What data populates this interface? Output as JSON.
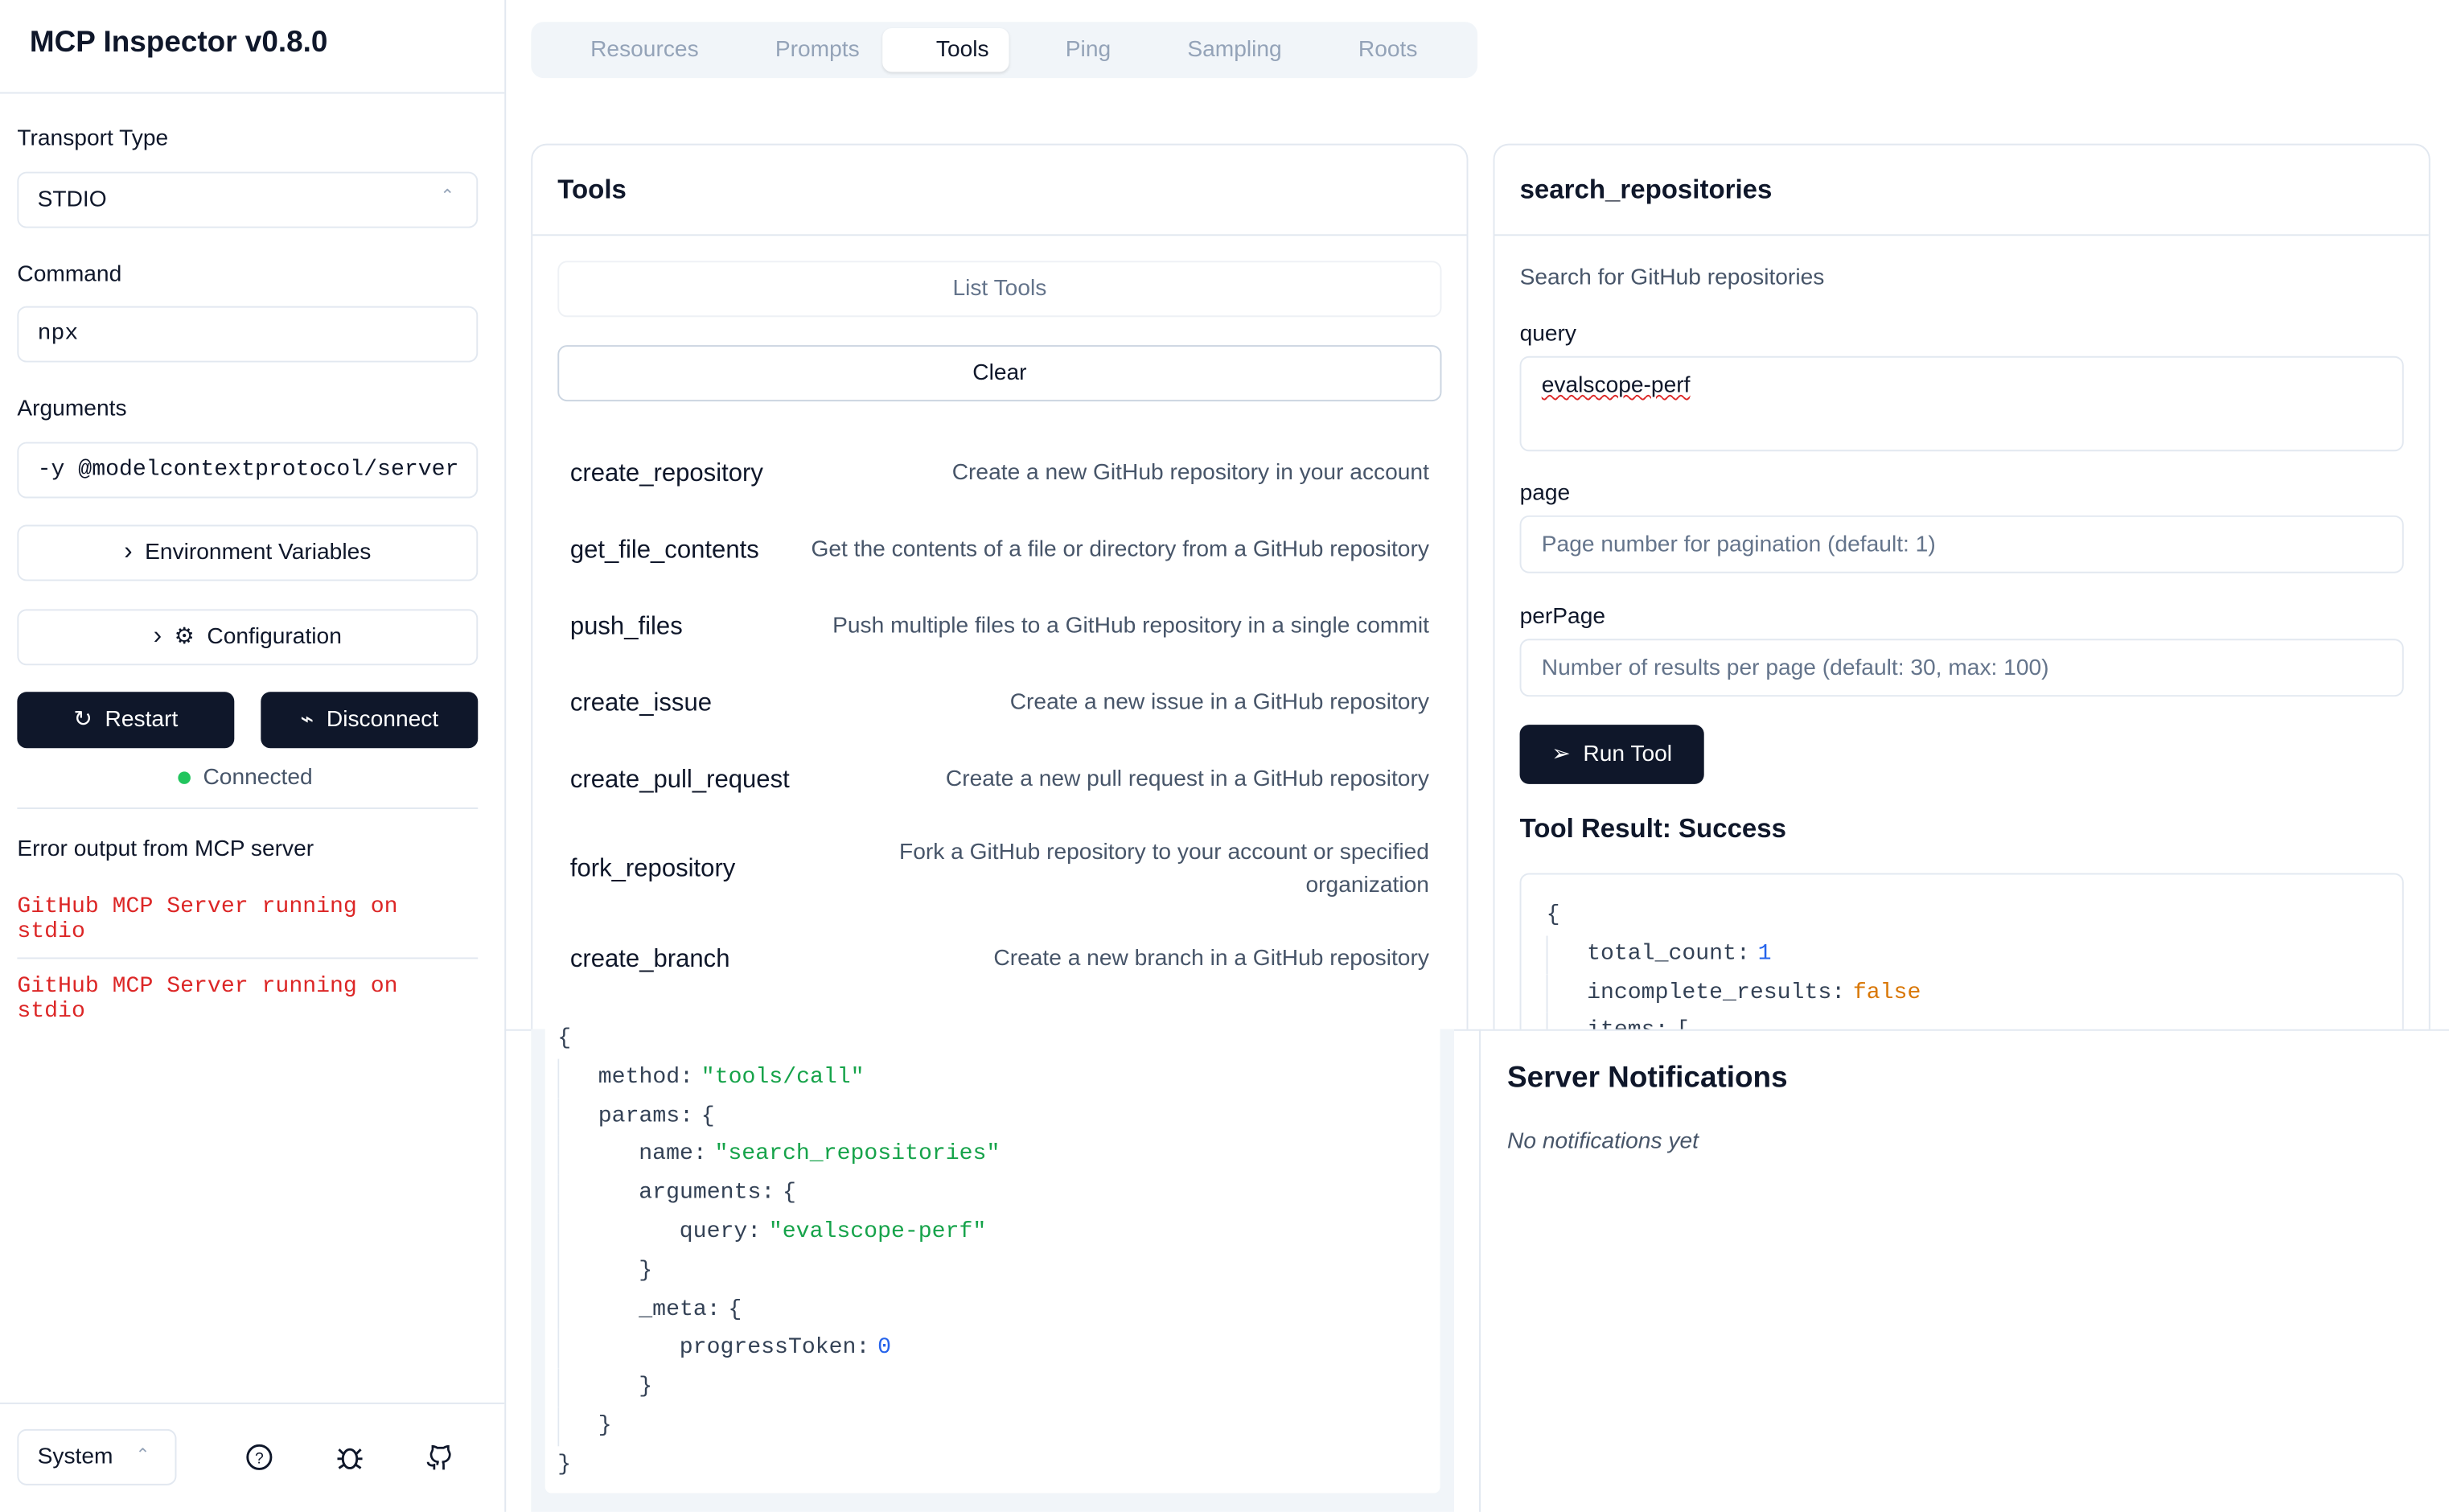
{
  "header": {
    "title": "MCP Inspector v0.8.0"
  },
  "sidebar": {
    "transport_label": "Transport Type",
    "transport_value": "STDIO",
    "command_label": "Command",
    "command_value": "npx",
    "arguments_label": "Arguments",
    "arguments_value": "-y @modelcontextprotocol/server",
    "env_button": "Environment Variables",
    "config_button": "Configuration",
    "restart_button": "Restart",
    "disconnect_button": "Disconnect",
    "status": "Connected",
    "error_title": "Error output from MCP server",
    "errors": [
      "GitHub MCP Server running on stdio",
      "GitHub MCP Server running on stdio"
    ],
    "theme": "System"
  },
  "tabs": [
    "Resources",
    "Prompts",
    "Tools",
    "Ping",
    "Sampling",
    "Roots"
  ],
  "tools_panel": {
    "title": "Tools",
    "list_button": "List Tools",
    "clear_button": "Clear",
    "tools": [
      {
        "name": "create_repository",
        "description": "Create a new GitHub repository in your account"
      },
      {
        "name": "get_file_contents",
        "description": "Get the contents of a file or directory from a GitHub repository"
      },
      {
        "name": "push_files",
        "description": "Push multiple files to a GitHub repository in a single commit"
      },
      {
        "name": "create_issue",
        "description": "Create a new issue in a GitHub repository"
      },
      {
        "name": "create_pull_request",
        "description": "Create a new pull request in a GitHub repository"
      },
      {
        "name": "fork_repository",
        "description": "Fork a GitHub repository to your account or specified organization"
      },
      {
        "name": "create_branch",
        "description": "Create a new branch in a GitHub repository"
      }
    ]
  },
  "tool_detail": {
    "title": "search_repositories",
    "description": "Search for GitHub repositories",
    "fields": [
      {
        "label": "query",
        "value": "evalscope-perf"
      },
      {
        "label": "page",
        "placeholder": "Page number for pagination (default: 1)"
      },
      {
        "label": "perPage",
        "placeholder": "Number of results per page (default: 30, max: 100)"
      }
    ],
    "run_button": "Run Tool",
    "result_title": "Tool Result: Success",
    "result_lines": [
      {
        "text": "{"
      },
      {
        "key": "total_count:",
        "value": "1"
      },
      {
        "key": "incomplete_results:",
        "value": "false"
      },
      {
        "key": "items:",
        "value": "["
      }
    ]
  },
  "history": {
    "lines": [
      {
        "text": "{"
      },
      {
        "key": "method:",
        "value": "\"tools/call\""
      },
      {
        "key": "params:",
        "value": "{"
      },
      {
        "key": "name:",
        "value": "\"search_repositories\""
      },
      {
        "key": "arguments:",
        "value": "{"
      },
      {
        "key": "query:",
        "value": "\"evalscope-perf\""
      },
      {
        "text": "}"
      },
      {
        "key": "_meta:",
        "value": "{"
      },
      {
        "key": "progressToken:",
        "value": "0"
      },
      {
        "text": "}"
      },
      {
        "text": "}"
      },
      {
        "text": "}"
      }
    ]
  },
  "notifications": {
    "title": "Server Notifications",
    "empty": "No notifications yet"
  }
}
